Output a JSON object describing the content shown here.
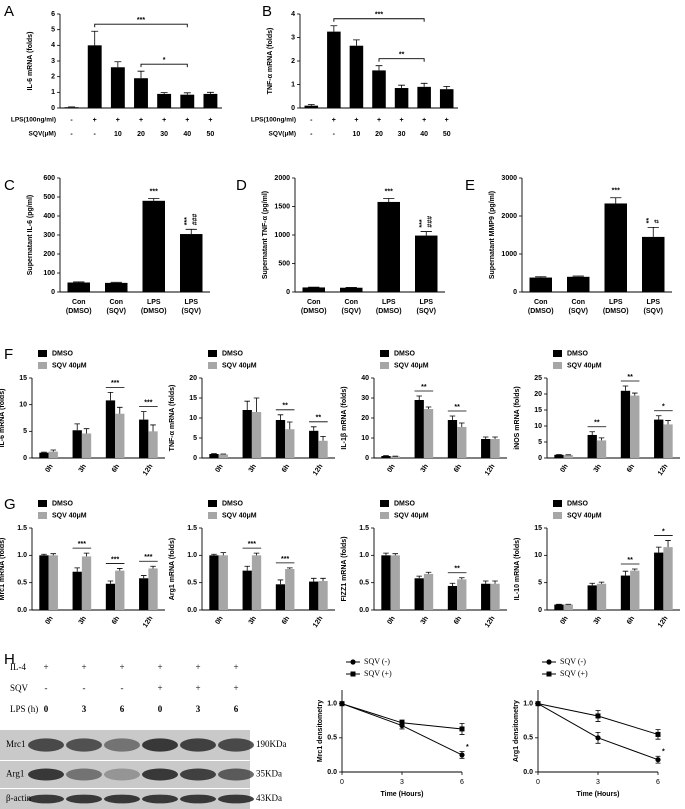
{
  "chart_data": [
    {
      "type": "bar",
      "panel": "A",
      "y_label": "IL-6 mRNA (folds)",
      "values": [
        0.05,
        4.0,
        2.6,
        1.9,
        0.9,
        0.85,
        0.9
      ],
      "errors": [
        0.02,
        0.9,
        0.35,
        0.45,
        0.08,
        0.12,
        0.1
      ],
      "color": "#000000",
      "ylim": [
        0,
        6
      ],
      "yticks": [
        0,
        1,
        2,
        3,
        4,
        5,
        6
      ],
      "conditions": [
        {
          "label": "LPS(100ng/ml)",
          "values": [
            "-",
            "+",
            "+",
            "+",
            "+",
            "+",
            "+"
          ]
        },
        {
          "label": "SQV(μM)",
          "values": [
            "-",
            "-",
            "10",
            "20",
            "30",
            "40",
            "50"
          ]
        }
      ],
      "brackets": [
        {
          "from": 1,
          "to": 5,
          "text": "***"
        },
        {
          "from": 3,
          "to": 5,
          "text": "*"
        }
      ]
    },
    {
      "type": "bar",
      "panel": "B",
      "y_label": "TNF-α mRNA (folds)",
      "values": [
        0.1,
        3.25,
        2.65,
        1.6,
        0.85,
        0.9,
        0.8
      ],
      "errors": [
        0.05,
        0.25,
        0.25,
        0.2,
        0.12,
        0.15,
        0.12
      ],
      "color": "#000000",
      "ylim": [
        0,
        4
      ],
      "yticks": [
        0,
        1,
        2,
        3,
        4
      ],
      "conditions": [
        {
          "label": "LPS(100ng/ml)",
          "values": [
            "-",
            "+",
            "+",
            "+",
            "+",
            "+",
            "+"
          ]
        },
        {
          "label": "SQV(μM)",
          "values": [
            "-",
            "-",
            "10",
            "20",
            "30",
            "40",
            "50"
          ]
        }
      ],
      "brackets": [
        {
          "from": 1,
          "to": 5,
          "text": "***"
        },
        {
          "from": 3,
          "to": 5,
          "text": "**"
        }
      ]
    },
    {
      "type": "bar",
      "panel": "C",
      "y_label": "Supernatant IL-6 (pg/ml)",
      "categories": [
        [
          "Con",
          "(DMSO)"
        ],
        [
          "Con",
          "(SQV)"
        ],
        [
          "LPS",
          "(DMSO)"
        ],
        [
          "LPS",
          "(SQV)"
        ]
      ],
      "values": [
        50,
        48,
        480,
        305
      ],
      "errors": [
        3,
        3,
        12,
        25
      ],
      "color": "#000000",
      "ylim": [
        0,
        600
      ],
      "yticks": [
        0,
        100,
        200,
        300,
        400,
        500,
        600
      ],
      "annotations": [
        {
          "index": 2,
          "text": "***"
        },
        {
          "index": 3,
          "text": "***"
        },
        {
          "index": 3,
          "text": "###"
        }
      ]
    },
    {
      "type": "bar",
      "panel": "D",
      "y_label": "Supernatant TNF-α (pg/ml)",
      "categories": [
        [
          "Con",
          "(DMSO)"
        ],
        [
          "Con",
          "(SQV)"
        ],
        [
          "LPS",
          "(DMSO)"
        ],
        [
          "LPS",
          "(SQV)"
        ]
      ],
      "values": [
        80,
        75,
        1580,
        990
      ],
      "errors": [
        5,
        5,
        60,
        70
      ],
      "color": "#000000",
      "ylim": [
        0,
        2000
      ],
      "yticks": [
        0,
        500,
        1000,
        1500,
        2000
      ],
      "annotations": [
        {
          "index": 2,
          "text": "***"
        },
        {
          "index": 3,
          "text": "***"
        },
        {
          "index": 3,
          "text": "###"
        }
      ]
    },
    {
      "type": "bar",
      "panel": "E",
      "y_label": "Supernatant MMP9 (pg/ml)",
      "categories": [
        [
          "Con",
          "(DMSO)"
        ],
        [
          "Con",
          "(SQV)"
        ],
        [
          "LPS",
          "(DMSO)"
        ],
        [
          "LPS",
          "(SQV)"
        ]
      ],
      "values": [
        380,
        400,
        2330,
        1450
      ],
      "errors": [
        20,
        20,
        150,
        250
      ],
      "color": "#000000",
      "ylim": [
        0,
        3000
      ],
      "yticks": [
        0,
        1000,
        2000,
        3000
      ],
      "annotations": [
        {
          "index": 2,
          "text": "***"
        },
        {
          "index": 3,
          "text": "**"
        },
        {
          "index": 3,
          "text": "#"
        }
      ]
    },
    {
      "type": "bar",
      "panel": "F",
      "y_label": "IL-6 mRNA (folds)",
      "categories": [
        "0h",
        "3h",
        "6h",
        "12h"
      ],
      "ylim": [
        0,
        15
      ],
      "yticks": [
        0,
        5,
        10,
        15
      ],
      "series": [
        {
          "name": "DMSO",
          "color": "#000000",
          "values": [
            1,
            5.2,
            10.8,
            7.2
          ],
          "errors": [
            0.1,
            1.2,
            1.5,
            1.5
          ]
        },
        {
          "name": "SQV 40μM",
          "color": "#a6a6a6",
          "values": [
            1.2,
            4.6,
            8.3,
            5.0
          ],
          "errors": [
            0.3,
            0.9,
            1.2,
            1.2
          ]
        }
      ],
      "annotations": [
        {
          "index": 2,
          "text": "***"
        },
        {
          "index": 3,
          "text": "***"
        }
      ]
    },
    {
      "type": "bar",
      "y_label": "TNF-α mRNA (folds)",
      "categories": [
        "0h",
        "3h",
        "6h",
        "12h"
      ],
      "ylim": [
        0,
        20
      ],
      "yticks": [
        0,
        5,
        10,
        15,
        20
      ],
      "series": [
        {
          "name": "DMSO",
          "color": "#000000",
          "values": [
            1,
            12,
            9.5,
            6.8
          ],
          "errors": [
            0.1,
            2.2,
            1.3,
            1.0
          ]
        },
        {
          "name": "SQV 40μM",
          "color": "#a6a6a6",
          "values": [
            0.9,
            11.5,
            7.2,
            4.3
          ],
          "errors": [
            0.1,
            3.5,
            1.8,
            1.1
          ]
        }
      ],
      "annotations": [
        {
          "index": 2,
          "text": "**"
        },
        {
          "index": 3,
          "text": "**"
        }
      ]
    },
    {
      "type": "bar",
      "y_label": "IL-1β mRNA (folds)",
      "categories": [
        "0h",
        "3h",
        "6h",
        "12h"
      ],
      "ylim": [
        0,
        40
      ],
      "yticks": [
        0,
        10,
        20,
        30,
        40
      ],
      "series": [
        {
          "name": "DMSO",
          "color": "#000000",
          "values": [
            1,
            29,
            19,
            9.5
          ],
          "errors": [
            0.2,
            2,
            2,
            1
          ]
        },
        {
          "name": "SQV 40μM",
          "color": "#a6a6a6",
          "values": [
            0.8,
            24.5,
            15.5,
            9.5
          ],
          "errors": [
            0.1,
            1,
            2,
            1
          ]
        }
      ],
      "annotations": [
        {
          "index": 1,
          "text": "**"
        },
        {
          "index": 2,
          "text": "**"
        }
      ]
    },
    {
      "type": "bar",
      "y_label": "iNOS mRNA (folds)",
      "categories": [
        "0h",
        "3h",
        "6h",
        "12h"
      ],
      "ylim": [
        0,
        25
      ],
      "yticks": [
        0,
        5,
        10,
        15,
        20,
        25
      ],
      "series": [
        {
          "name": "DMSO",
          "color": "#000000",
          "values": [
            1,
            7.2,
            21,
            12
          ],
          "errors": [
            0.1,
            1,
            1.5,
            1.2
          ]
        },
        {
          "name": "SQV 40μM",
          "color": "#a6a6a6",
          "values": [
            0.9,
            5.5,
            19.5,
            10.5
          ],
          "errors": [
            0.1,
            0.8,
            0.8,
            1.2
          ]
        }
      ],
      "annotations": [
        {
          "index": 1,
          "text": "**"
        },
        {
          "index": 2,
          "text": "**"
        },
        {
          "index": 3,
          "text": "*"
        }
      ]
    },
    {
      "type": "bar",
      "panel": "G",
      "y_label": "Mrc1 mRNA (folds)",
      "categories": [
        "0h",
        "3h",
        "6h",
        "12h"
      ],
      "ylim": [
        0,
        1.5
      ],
      "yticks": [
        {
          "value": 0,
          "label": "0.0"
        },
        0.5,
        {
          "value": 1,
          "label": "1.0"
        },
        1.5
      ],
      "series": [
        {
          "name": "DMSO",
          "color": "#000000",
          "values": [
            1,
            0.7,
            0.48,
            0.58
          ],
          "errors": [
            0.02,
            0.07,
            0.05,
            0.05
          ]
        },
        {
          "name": "SQV 40μM",
          "color": "#a6a6a6",
          "values": [
            1,
            0.98,
            0.72,
            0.76
          ],
          "errors": [
            0.03,
            0.06,
            0.04,
            0.04
          ]
        }
      ],
      "annotations": [
        {
          "index": 1,
          "text": "***"
        },
        {
          "index": 2,
          "text": "***"
        },
        {
          "index": 3,
          "text": "***"
        }
      ]
    },
    {
      "type": "bar",
      "y_label": "Arg1 mRNA (folds)",
      "categories": [
        "0h",
        "3h",
        "6h",
        "12h"
      ],
      "ylim": [
        0,
        1.5
      ],
      "yticks": [
        {
          "value": 0,
          "label": "0.0"
        },
        0.5,
        {
          "value": 1,
          "label": "1.0"
        },
        1.5
      ],
      "series": [
        {
          "name": "DMSO",
          "color": "#000000",
          "values": [
            1,
            0.72,
            0.47,
            0.52
          ],
          "errors": [
            0.02,
            0.08,
            0.08,
            0.06
          ]
        },
        {
          "name": "SQV 40μM",
          "color": "#a6a6a6",
          "values": [
            1,
            1.0,
            0.75,
            0.53
          ],
          "errors": [
            0.05,
            0.04,
            0.02,
            0.05
          ]
        }
      ],
      "annotations": [
        {
          "index": 1,
          "text": "***"
        },
        {
          "index": 2,
          "text": "***"
        }
      ]
    },
    {
      "type": "bar",
      "y_label": "FIZZ1 mRNA (folds)",
      "categories": [
        "0h",
        "3h",
        "6h",
        "12h"
      ],
      "ylim": [
        0,
        1.5
      ],
      "yticks": [
        {
          "value": 0,
          "label": "0.0"
        },
        0.5,
        {
          "value": 1,
          "label": "1.0"
        },
        1.5
      ],
      "series": [
        {
          "name": "DMSO",
          "color": "#000000",
          "values": [
            1,
            0.58,
            0.44,
            0.48
          ],
          "errors": [
            0.04,
            0.04,
            0.05,
            0.05
          ]
        },
        {
          "name": "SQV 40μM",
          "color": "#a6a6a6",
          "values": [
            1,
            0.66,
            0.56,
            0.48
          ],
          "errors": [
            0.03,
            0.03,
            0.03,
            0.05
          ]
        }
      ],
      "annotations": [
        {
          "index": 2,
          "text": "**"
        }
      ]
    },
    {
      "type": "bar",
      "y_label": "IL-10 mRNA (folds)",
      "categories": [
        "0h",
        "3h",
        "6h",
        "12h"
      ],
      "ylim": [
        0,
        15
      ],
      "yticks": [
        0,
        5,
        10,
        15
      ],
      "series": [
        {
          "name": "DMSO",
          "color": "#000000",
          "values": [
            1,
            4.5,
            6.3,
            10.5
          ],
          "errors": [
            0.05,
            0.4,
            0.8,
            1
          ]
        },
        {
          "name": "SQV 40μM",
          "color": "#a6a6a6",
          "values": [
            1,
            4.8,
            7.2,
            11.5
          ],
          "errors": [
            0.05,
            0.3,
            0.3,
            1.2
          ]
        }
      ],
      "annotations": [
        {
          "index": 2,
          "text": "**"
        },
        {
          "index": 3,
          "text": "*"
        }
      ]
    },
    {
      "type": "line",
      "y_label": "Mrc1 densitometry",
      "x_label": "Time (Hours)",
      "x": [
        0,
        3,
        6
      ],
      "xlim": [
        0,
        6
      ],
      "xticks": [
        0,
        3,
        6
      ],
      "ylim": [
        0,
        1.2
      ],
      "yticks": [
        {
          "value": 0,
          "label": "0.0"
        },
        0.5,
        {
          "value": 1,
          "label": "1.0"
        }
      ],
      "series": [
        {
          "name": "SQV (-)",
          "marker": "circle",
          "color": "#000000",
          "values": [
            1,
            0.68,
            0.25
          ],
          "errors": [
            0.02,
            0.05,
            0.05
          ]
        },
        {
          "name": "SQV (+)",
          "marker": "square",
          "color": "#000000",
          "values": [
            1,
            0.72,
            0.63
          ],
          "errors": [
            0.02,
            0.04,
            0.08
          ]
        }
      ],
      "annotations": [
        {
          "series": 0,
          "index": 2,
          "text": "*"
        }
      ]
    },
    {
      "type": "line",
      "y_label": "Arg1 densitometry",
      "x_label": "Time (Hours)",
      "x": [
        0,
        3,
        6
      ],
      "xlim": [
        0,
        6
      ],
      "xticks": [
        0,
        3,
        6
      ],
      "ylim": [
        0,
        1.2
      ],
      "yticks": [
        {
          "value": 0,
          "label": "0.0"
        },
        0.5,
        {
          "value": 1,
          "label": "1.0"
        }
      ],
      "series": [
        {
          "name": "SQV (-)",
          "marker": "circle",
          "color": "#000000",
          "values": [
            1,
            0.5,
            0.18
          ],
          "errors": [
            0.02,
            0.08,
            0.05
          ]
        },
        {
          "name": "SQV (+)",
          "marker": "square",
          "color": "#000000",
          "values": [
            1,
            0.82,
            0.55
          ],
          "errors": [
            0.02,
            0.08,
            0.07
          ]
        }
      ],
      "annotations": [
        {
          "series": 0,
          "index": 2,
          "text": "*"
        }
      ]
    }
  ],
  "blot": {
    "panel": "H",
    "treatments": [
      {
        "label": "IL-4",
        "values": [
          "+",
          "+",
          "+",
          "+",
          "+",
          "+"
        ]
      },
      {
        "label": "SQV",
        "values": [
          "-",
          "-",
          "-",
          "+",
          "+",
          "+"
        ]
      },
      {
        "label": "LPS (h)",
        "values": [
          "0",
          "3",
          "6",
          "0",
          "3",
          "6"
        ]
      }
    ],
    "bands": [
      {
        "name": "Mrc1",
        "size": "190KDa"
      },
      {
        "name": "Arg1",
        "size": "35KDa"
      },
      {
        "name": "β-actin",
        "size": "43KDa"
      }
    ]
  }
}
